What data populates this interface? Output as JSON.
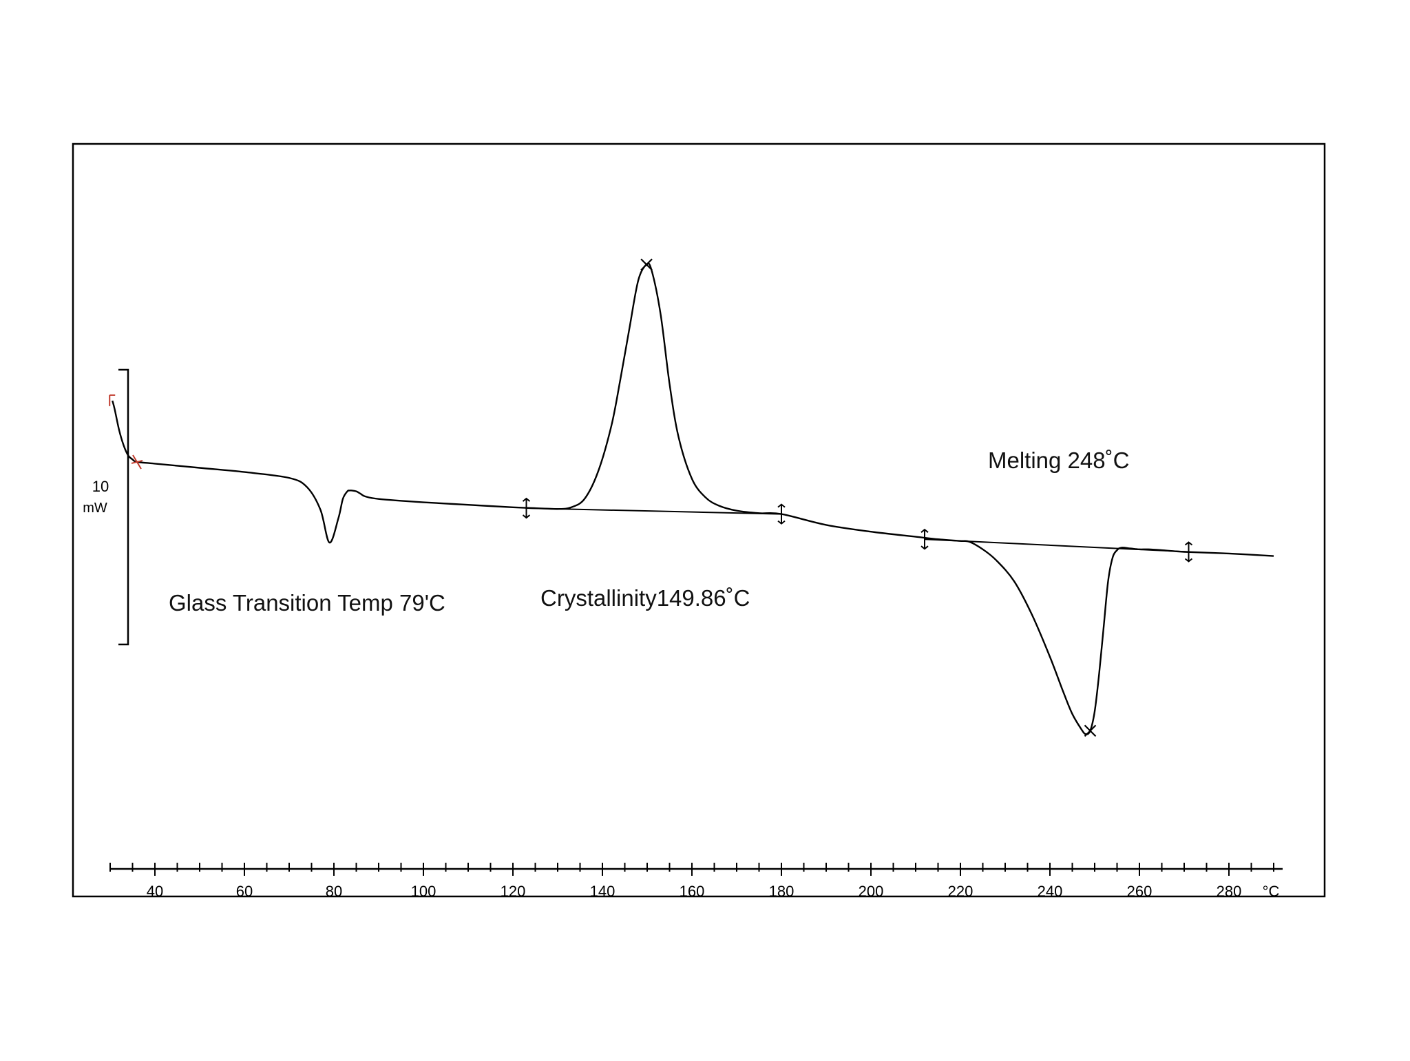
{
  "chart_data": {
    "type": "line",
    "x_unit": "°C",
    "y_scale_bar": {
      "value": "10",
      "unit": "mW"
    },
    "xlim": [
      30,
      290
    ],
    "x_ticks": [
      40,
      60,
      80,
      100,
      120,
      140,
      160,
      180,
      200,
      220,
      240,
      260,
      280
    ],
    "tick_labels": [
      "40",
      "60",
      "80",
      "100",
      "120",
      "140",
      "160",
      "180",
      "200",
      "220",
      "240",
      "260",
      "280"
    ],
    "annotations": [
      {
        "text": "Glass Transition Temp 79'C",
        "x": 79
      },
      {
        "text": "Crystallinity149.86˚C",
        "x": 149.86
      },
      {
        "text": "Melting 248˚C",
        "x": 248
      }
    ],
    "series": [
      {
        "x": [
          30.5,
          31,
          32,
          33,
          34,
          35,
          36,
          40,
          50,
          60,
          70,
          74,
          77,
          79,
          81,
          82,
          83,
          83.5,
          84,
          85,
          86,
          87,
          90,
          100,
          110,
          120,
          125,
          130,
          133,
          136,
          139,
          142,
          144,
          146,
          148,
          149.86,
          151,
          153,
          155,
          157,
          160,
          163,
          166,
          170,
          175,
          180,
          190,
          200,
          210,
          215,
          220,
          222,
          225,
          228,
          232,
          236,
          240,
          243,
          245,
          247,
          248,
          249,
          250,
          251,
          252,
          253,
          254,
          255,
          256,
          258,
          260,
          262,
          265,
          270,
          280,
          290
        ],
        "y": [
          10.5,
          9.5,
          7,
          5.2,
          4,
          3.5,
          3.2,
          3,
          2.5,
          2,
          1.3,
          0.2,
          -2.5,
          -6.4,
          -3.5,
          -1.2,
          -0.3,
          -0.2,
          -0.2,
          -0.3,
          -0.6,
          -0.9,
          -1.2,
          -1.6,
          -1.9,
          -2.2,
          -2.3,
          -2.4,
          -2.2,
          -1.2,
          2.0,
          7.5,
          13.0,
          19.0,
          24.8,
          26.7,
          26.0,
          20.8,
          12.5,
          6.2,
          1.2,
          -1.0,
          -2.0,
          -2.6,
          -2.9,
          -3.0,
          -4.3,
          -5.1,
          -5.7,
          -6.0,
          -6.2,
          -6.3,
          -7.2,
          -8.5,
          -11.0,
          -15.0,
          -20.0,
          -24.2,
          -26.8,
          -28.6,
          -29.2,
          -28.8,
          -26.5,
          -22.0,
          -16.5,
          -11.0,
          -8.2,
          -7.3,
          -7.0,
          -7.1,
          -7.2,
          -7.2,
          -7.3,
          -7.5,
          -7.7,
          -8.0
        ]
      }
    ]
  }
}
